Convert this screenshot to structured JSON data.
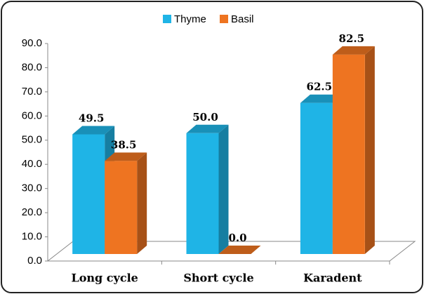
{
  "chart_data": {
    "type": "bar3d",
    "categories": [
      "Long cycle",
      "Short cycle",
      "Karadent"
    ],
    "series": [
      {
        "name": "Thyme",
        "color": "#1fb4e6",
        "values": [
          49.5,
          50.0,
          62.5
        ],
        "value_labels": [
          "49.5",
          "50.0",
          "62.5"
        ]
      },
      {
        "name": "Basil",
        "color": "#ee7421",
        "values": [
          38.5,
          0.0,
          82.5
        ],
        "value_labels": [
          "38.5",
          "0.0",
          "82.5"
        ]
      }
    ],
    "ylim": [
      0,
      90
    ],
    "yticks": [
      {
        "value": 0,
        "label": "0.0"
      },
      {
        "value": 10,
        "label": "10.0"
      },
      {
        "value": 20,
        "label": "20.0"
      },
      {
        "value": 30,
        "label": "30.0"
      },
      {
        "value": 40,
        "label": "40.0"
      },
      {
        "value": 50,
        "label": "50.0"
      },
      {
        "value": 60,
        "label": "60.0"
      },
      {
        "value": 70,
        "label": "70.0"
      },
      {
        "value": 80,
        "label": "80.0"
      },
      {
        "value": 90,
        "label": "90.0"
      }
    ],
    "legend": "top"
  }
}
